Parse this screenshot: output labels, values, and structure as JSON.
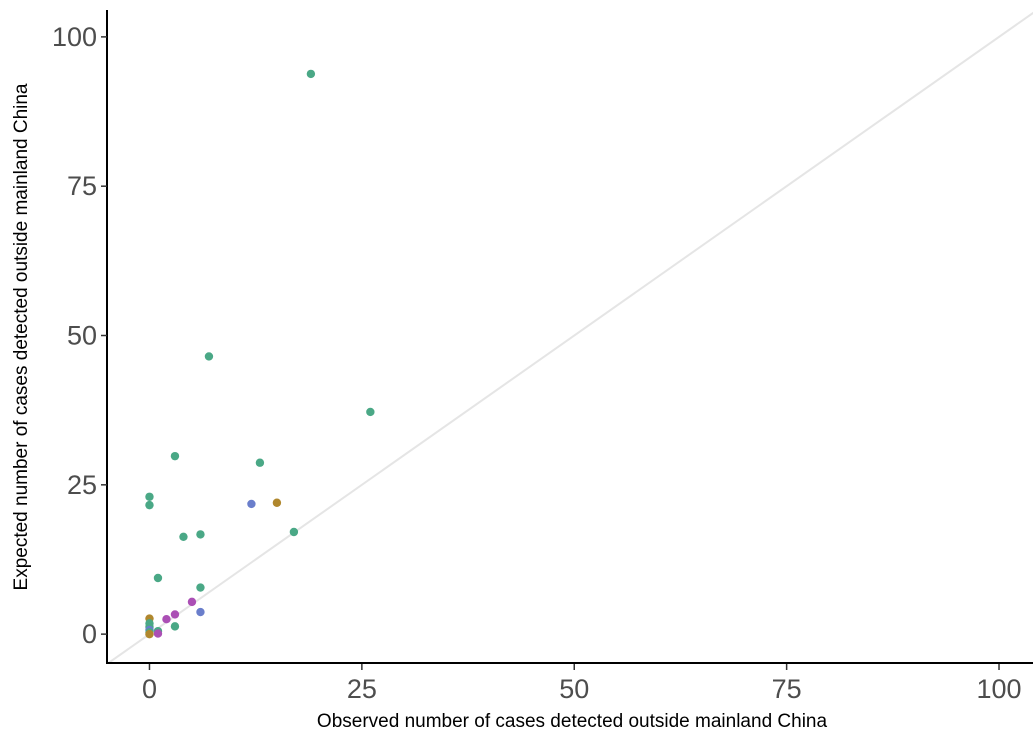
{
  "chart_data": {
    "type": "scatter",
    "title": "",
    "xlabel": "Observed number of cases detected outside mainland China",
    "ylabel": "Expected  number of cases detected outside mainland China",
    "xlim": [
      -5,
      104
    ],
    "ylim": [
      -5,
      104.5
    ],
    "x_ticks": [
      0,
      25,
      50,
      75,
      100
    ],
    "y_ticks": [
      0,
      25,
      50,
      75,
      100
    ],
    "grid": false,
    "legend": "none",
    "reference_line": {
      "type": "identity",
      "color": "#e5e5e5"
    },
    "colors": {
      "green": "#4aa886",
      "blue": "#6a7ecb",
      "purple": "#ab4fb5",
      "gold": "#b0872d"
    },
    "points": [
      {
        "x": 19,
        "y": 93.8,
        "color": "green"
      },
      {
        "x": 7,
        "y": 46.5,
        "color": "green"
      },
      {
        "x": 26,
        "y": 37.2,
        "color": "green"
      },
      {
        "x": 3,
        "y": 29.8,
        "color": "green"
      },
      {
        "x": 13,
        "y": 28.7,
        "color": "green"
      },
      {
        "x": 0,
        "y": 23,
        "color": "green"
      },
      {
        "x": 0,
        "y": 21.6,
        "color": "green"
      },
      {
        "x": 12,
        "y": 21.8,
        "color": "blue"
      },
      {
        "x": 15,
        "y": 22,
        "color": "gold"
      },
      {
        "x": 17,
        "y": 17.1,
        "color": "green"
      },
      {
        "x": 6,
        "y": 16.7,
        "color": "green"
      },
      {
        "x": 4,
        "y": 16.3,
        "color": "green"
      },
      {
        "x": 1,
        "y": 9.4,
        "color": "green"
      },
      {
        "x": 6,
        "y": 7.8,
        "color": "green"
      },
      {
        "x": 5,
        "y": 5.4,
        "color": "purple"
      },
      {
        "x": 6,
        "y": 3.7,
        "color": "blue"
      },
      {
        "x": 3,
        "y": 3.3,
        "color": "purple"
      },
      {
        "x": 2,
        "y": 2.5,
        "color": "purple"
      },
      {
        "x": 3,
        "y": 1.3,
        "color": "green"
      },
      {
        "x": 0,
        "y": 2.6,
        "color": "gold"
      },
      {
        "x": 0,
        "y": 1.8,
        "color": "green"
      },
      {
        "x": 0,
        "y": 1.2,
        "color": "green"
      },
      {
        "x": 0,
        "y": 0.7,
        "color": "blue"
      },
      {
        "x": 0,
        "y": 0.3,
        "color": "green"
      },
      {
        "x": 1,
        "y": 0.5,
        "color": "green"
      },
      {
        "x": 1,
        "y": 0.1,
        "color": "purple"
      },
      {
        "x": 0,
        "y": 0,
        "color": "gold"
      }
    ]
  }
}
